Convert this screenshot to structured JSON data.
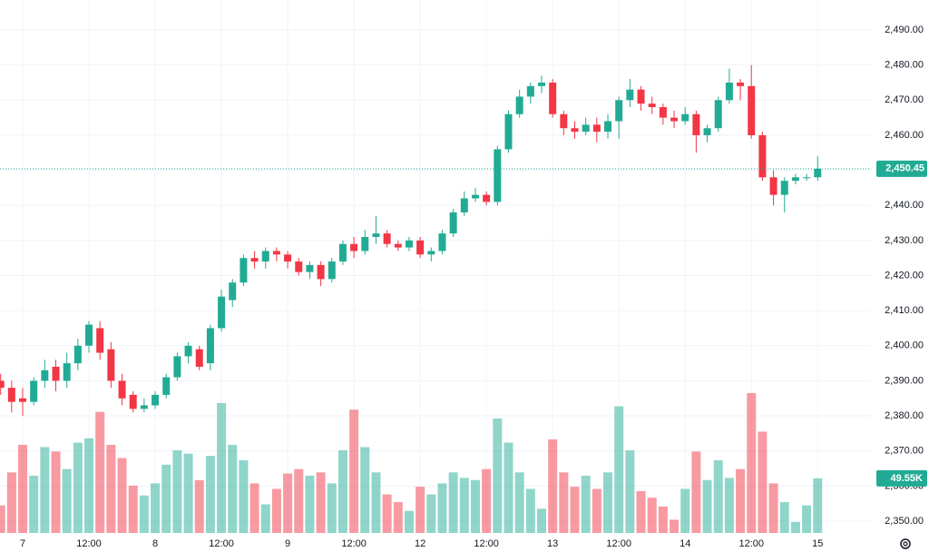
{
  "chart_data": {
    "type": "candlestick",
    "categories": [
      null,
      null,
      "7",
      null,
      null,
      null,
      null,
      null,
      "12:00",
      null,
      null,
      null,
      null,
      null,
      "8",
      null,
      null,
      null,
      null,
      null,
      "12:00",
      null,
      null,
      null,
      null,
      null,
      "9",
      null,
      null,
      null,
      null,
      null,
      "12:00",
      null,
      null,
      null,
      null,
      null,
      "12",
      null,
      null,
      null,
      null,
      null,
      "12:00",
      null,
      null,
      null,
      null,
      null,
      "13",
      null,
      null,
      null,
      null,
      null,
      "12:00",
      null,
      null,
      null,
      null,
      null,
      "14",
      null,
      null,
      null,
      null,
      null,
      "12:00",
      null,
      null,
      null,
      null,
      null,
      "15"
    ],
    "open": [
      2390,
      2388,
      2385,
      2384,
      2390,
      2394,
      2390,
      2395,
      2400,
      2405,
      2399,
      2390,
      2386,
      2382,
      2383,
      2386,
      2391,
      2397,
      2399,
      2395,
      2405,
      2413,
      2418,
      2425,
      2424,
      2427,
      2426,
      2424,
      2421,
      2423,
      2419,
      2424,
      2429,
      2427,
      2431,
      2432,
      2429,
      2428,
      2430,
      2426,
      2427,
      2432,
      2438,
      2442,
      2443,
      2441,
      2456,
      2466,
      2471,
      2474,
      2475,
      2466,
      2462,
      2461,
      2463,
      2461,
      2464,
      2470,
      2473,
      2469,
      2468,
      2465,
      2464,
      2466,
      2460,
      2462,
      2470,
      2475,
      2474,
      2460,
      2448,
      2443,
      2447,
      2448,
      2448
    ],
    "high": [
      2392,
      2390,
      2388,
      2391,
      2396,
      2396,
      2398,
      2402,
      2407,
      2407,
      2401,
      2392,
      2387,
      2385,
      2387,
      2392,
      2398,
      2401,
      2400,
      2406,
      2416,
      2419,
      2426,
      2427,
      2428,
      2428,
      2427,
      2425,
      2424,
      2424,
      2425,
      2430,
      2431,
      2433,
      2437,
      2433,
      2430,
      2431,
      2431,
      2428,
      2433,
      2439,
      2444,
      2445,
      2444,
      2457,
      2467,
      2473,
      2475,
      2477,
      2476,
      2467,
      2464,
      2465,
      2465,
      2466,
      2471,
      2476,
      2474,
      2471,
      2469,
      2467,
      2468,
      2467,
      2463,
      2471,
      2479,
      2476,
      2480,
      2461,
      2450,
      2448,
      2449,
      2449,
      2454
    ],
    "low": [
      2386,
      2381,
      2380,
      2383,
      2388,
      2387,
      2388,
      2393,
      2398,
      2396,
      2388,
      2383,
      2381,
      2381,
      2382,
      2385,
      2390,
      2395,
      2393,
      2393,
      2404,
      2411,
      2417,
      2422,
      2422,
      2424,
      2422,
      2420,
      2419,
      2417,
      2418,
      2423,
      2425,
      2426,
      2429,
      2428,
      2427,
      2427,
      2425,
      2424,
      2426,
      2431,
      2437,
      2441,
      2440,
      2440,
      2455,
      2465,
      2469,
      2472,
      2465,
      2460,
      2459,
      2460,
      2458,
      2459,
      2459,
      2468,
      2467,
      2466,
      2463,
      2462,
      2463,
      2455,
      2458,
      2461,
      2469,
      2470,
      2459,
      2447,
      2440,
      2438,
      2446,
      2447,
      2447
    ],
    "close": [
      2388,
      2384,
      2384,
      2390,
      2393,
      2390,
      2395,
      2400,
      2406,
      2398,
      2390,
      2385,
      2382,
      2383,
      2386,
      2391,
      2397,
      2400,
      2394,
      2405,
      2414,
      2418,
      2425,
      2424,
      2427,
      2426,
      2424,
      2421,
      2423,
      2419,
      2424,
      2429,
      2427,
      2431,
      2432,
      2429,
      2428,
      2430,
      2426,
      2427,
      2432,
      2438,
      2442,
      2443,
      2441,
      2456,
      2466,
      2471,
      2474,
      2475,
      2466,
      2462,
      2461,
      2463,
      2461,
      2464,
      2470,
      2473,
      2469,
      2468,
      2465,
      2464,
      2466,
      2460,
      2462,
      2470,
      2475,
      2474,
      2460,
      2448,
      2443,
      2447,
      2448,
      2448,
      2450.45
    ],
    "volume": [
      25,
      55,
      80,
      52,
      78,
      74,
      58,
      82,
      86,
      110,
      80,
      68,
      43,
      34,
      45,
      62,
      75,
      72,
      48,
      70,
      118,
      80,
      66,
      45,
      26,
      40,
      54,
      58,
      52,
      55,
      45,
      75,
      112,
      78,
      55,
      35,
      28,
      20,
      42,
      35,
      45,
      55,
      50,
      48,
      58,
      104,
      82,
      55,
      40,
      22,
      85,
      55,
      42,
      52,
      40,
      55,
      115,
      75,
      38,
      32,
      24,
      12,
      40,
      74,
      48,
      66,
      50,
      58,
      127,
      92,
      45,
      28,
      10,
      25,
      49.55
    ],
    "ylim": [
      2350,
      2490
    ],
    "yticks": [
      {
        "value": 2350,
        "label": "2,350.00"
      },
      {
        "value": 2360,
        "label": "2,360.00"
      },
      {
        "value": 2370,
        "label": "2,370.00"
      },
      {
        "value": 2380,
        "label": "2,380.00"
      },
      {
        "value": 2390,
        "label": "2,390.00"
      },
      {
        "value": 2400,
        "label": "2,400.00"
      },
      {
        "value": 2410,
        "label": "2,410.00"
      },
      {
        "value": 2420,
        "label": "2,420.00"
      },
      {
        "value": 2430,
        "label": "2,430.00"
      },
      {
        "value": 2440,
        "label": "2,440.00"
      },
      {
        "value": 2450,
        "label": "2,450.00"
      },
      {
        "value": 2460,
        "label": "2,460.00"
      },
      {
        "value": 2470,
        "label": "2,470.00"
      },
      {
        "value": 2480,
        "label": "2,480.00"
      },
      {
        "value": 2490,
        "label": "2,490.00"
      }
    ],
    "last_price": {
      "value": 2450.45,
      "label": "2,450.45"
    },
    "last_volume": {
      "value": 49.55,
      "label": "49.55K"
    },
    "up_color": "#22ab94",
    "down_color": "#f23645",
    "grid": true
  }
}
